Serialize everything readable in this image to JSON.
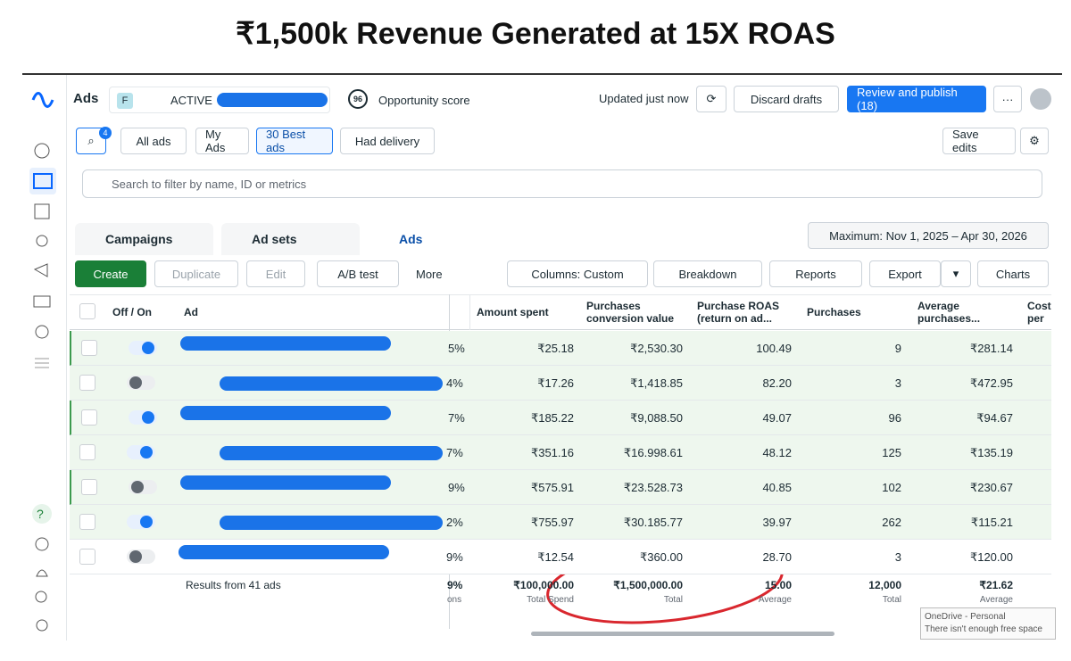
{
  "title": "₹1,500k Revenue Generated at 15X ROAS",
  "topbar": {
    "section": "Ads",
    "account_initial": "F",
    "status": "ACTIVE",
    "score": "96",
    "score_label": "Opportunity score",
    "updated": "Updated just now",
    "discard": "Discard drafts",
    "publish": "Review and publish (18)",
    "more": "···"
  },
  "filters": {
    "badge": "4",
    "items": [
      "All ads",
      "My Ads",
      "30 Best ads",
      "Had delivery"
    ],
    "save": "Save edits"
  },
  "search": "Search to filter by name, ID or metrics",
  "tabs": [
    "Campaigns",
    "Ad sets",
    "Ads"
  ],
  "date_range": "Maximum: Nov 1, 2025 – Apr 30, 2026",
  "toolbar": {
    "create": "Create",
    "duplicate": "Duplicate",
    "edit": "Edit",
    "ab_test": "A/B test",
    "more": "More",
    "columns": "Columns: Custom",
    "breakdown": "Breakdown",
    "reports": "Reports",
    "export": "Export",
    "charts": "Charts"
  },
  "sidebar": {
    "help": "?"
  },
  "table": {
    "headers": [
      "Off / On",
      "Ad",
      "Amount spent",
      "Purchases conversion value",
      "Purchase ROAS (return on ad...",
      "Purchases",
      "Average purchases...",
      "Cost per purch"
    ],
    "rows": [
      {
        "on": true,
        "partial": "5%",
        "cells": [
          "₹25.18",
          "₹2,530.30",
          "100.49",
          "9",
          "₹281.14"
        ]
      },
      {
        "on": false,
        "partial": "4%",
        "cells": [
          "₹17.26",
          "₹1,418.85",
          "82.20",
          "3",
          "₹472.95"
        ]
      },
      {
        "on": true,
        "partial": "7%",
        "cells": [
          "₹185.22",
          "₹9,088.50",
          "49.07",
          "96",
          "₹94.67"
        ]
      },
      {
        "on": true,
        "partial": "7%",
        "cells": [
          "₹351.16",
          "₹16.998.61",
          "48.12",
          "125",
          "₹135.19"
        ]
      },
      {
        "on": false,
        "partial": "9%",
        "cells": [
          "₹575.91",
          "₹23.528.73",
          "40.85",
          "102",
          "₹230.67"
        ]
      },
      {
        "on": true,
        "partial": "2%",
        "cells": [
          "₹755.97",
          "₹30.185.77",
          "39.97",
          "262",
          "₹115.21"
        ]
      },
      {
        "on": false,
        "partial": "9%",
        "cells": [
          "₹12.54",
          "₹360.00",
          "28.70",
          "3",
          "₹120.00"
        ]
      }
    ],
    "totals": {
      "label": "Results from 41 ads",
      "partial": "9%",
      "partial_sub": "ons",
      "cells": [
        {
          "value": "₹100,000.00",
          "sub": "Total Spend"
        },
        {
          "value": "₹1,500,000.00",
          "sub": "Total"
        },
        {
          "value": "15.00",
          "sub": "Average"
        },
        {
          "value": "12,000",
          "sub": "Total"
        },
        {
          "value": "₹21.62",
          "sub": "Average"
        }
      ]
    }
  },
  "notification": {
    "title": "OneDrive - Personal",
    "body": "There isn't enough free space"
  }
}
